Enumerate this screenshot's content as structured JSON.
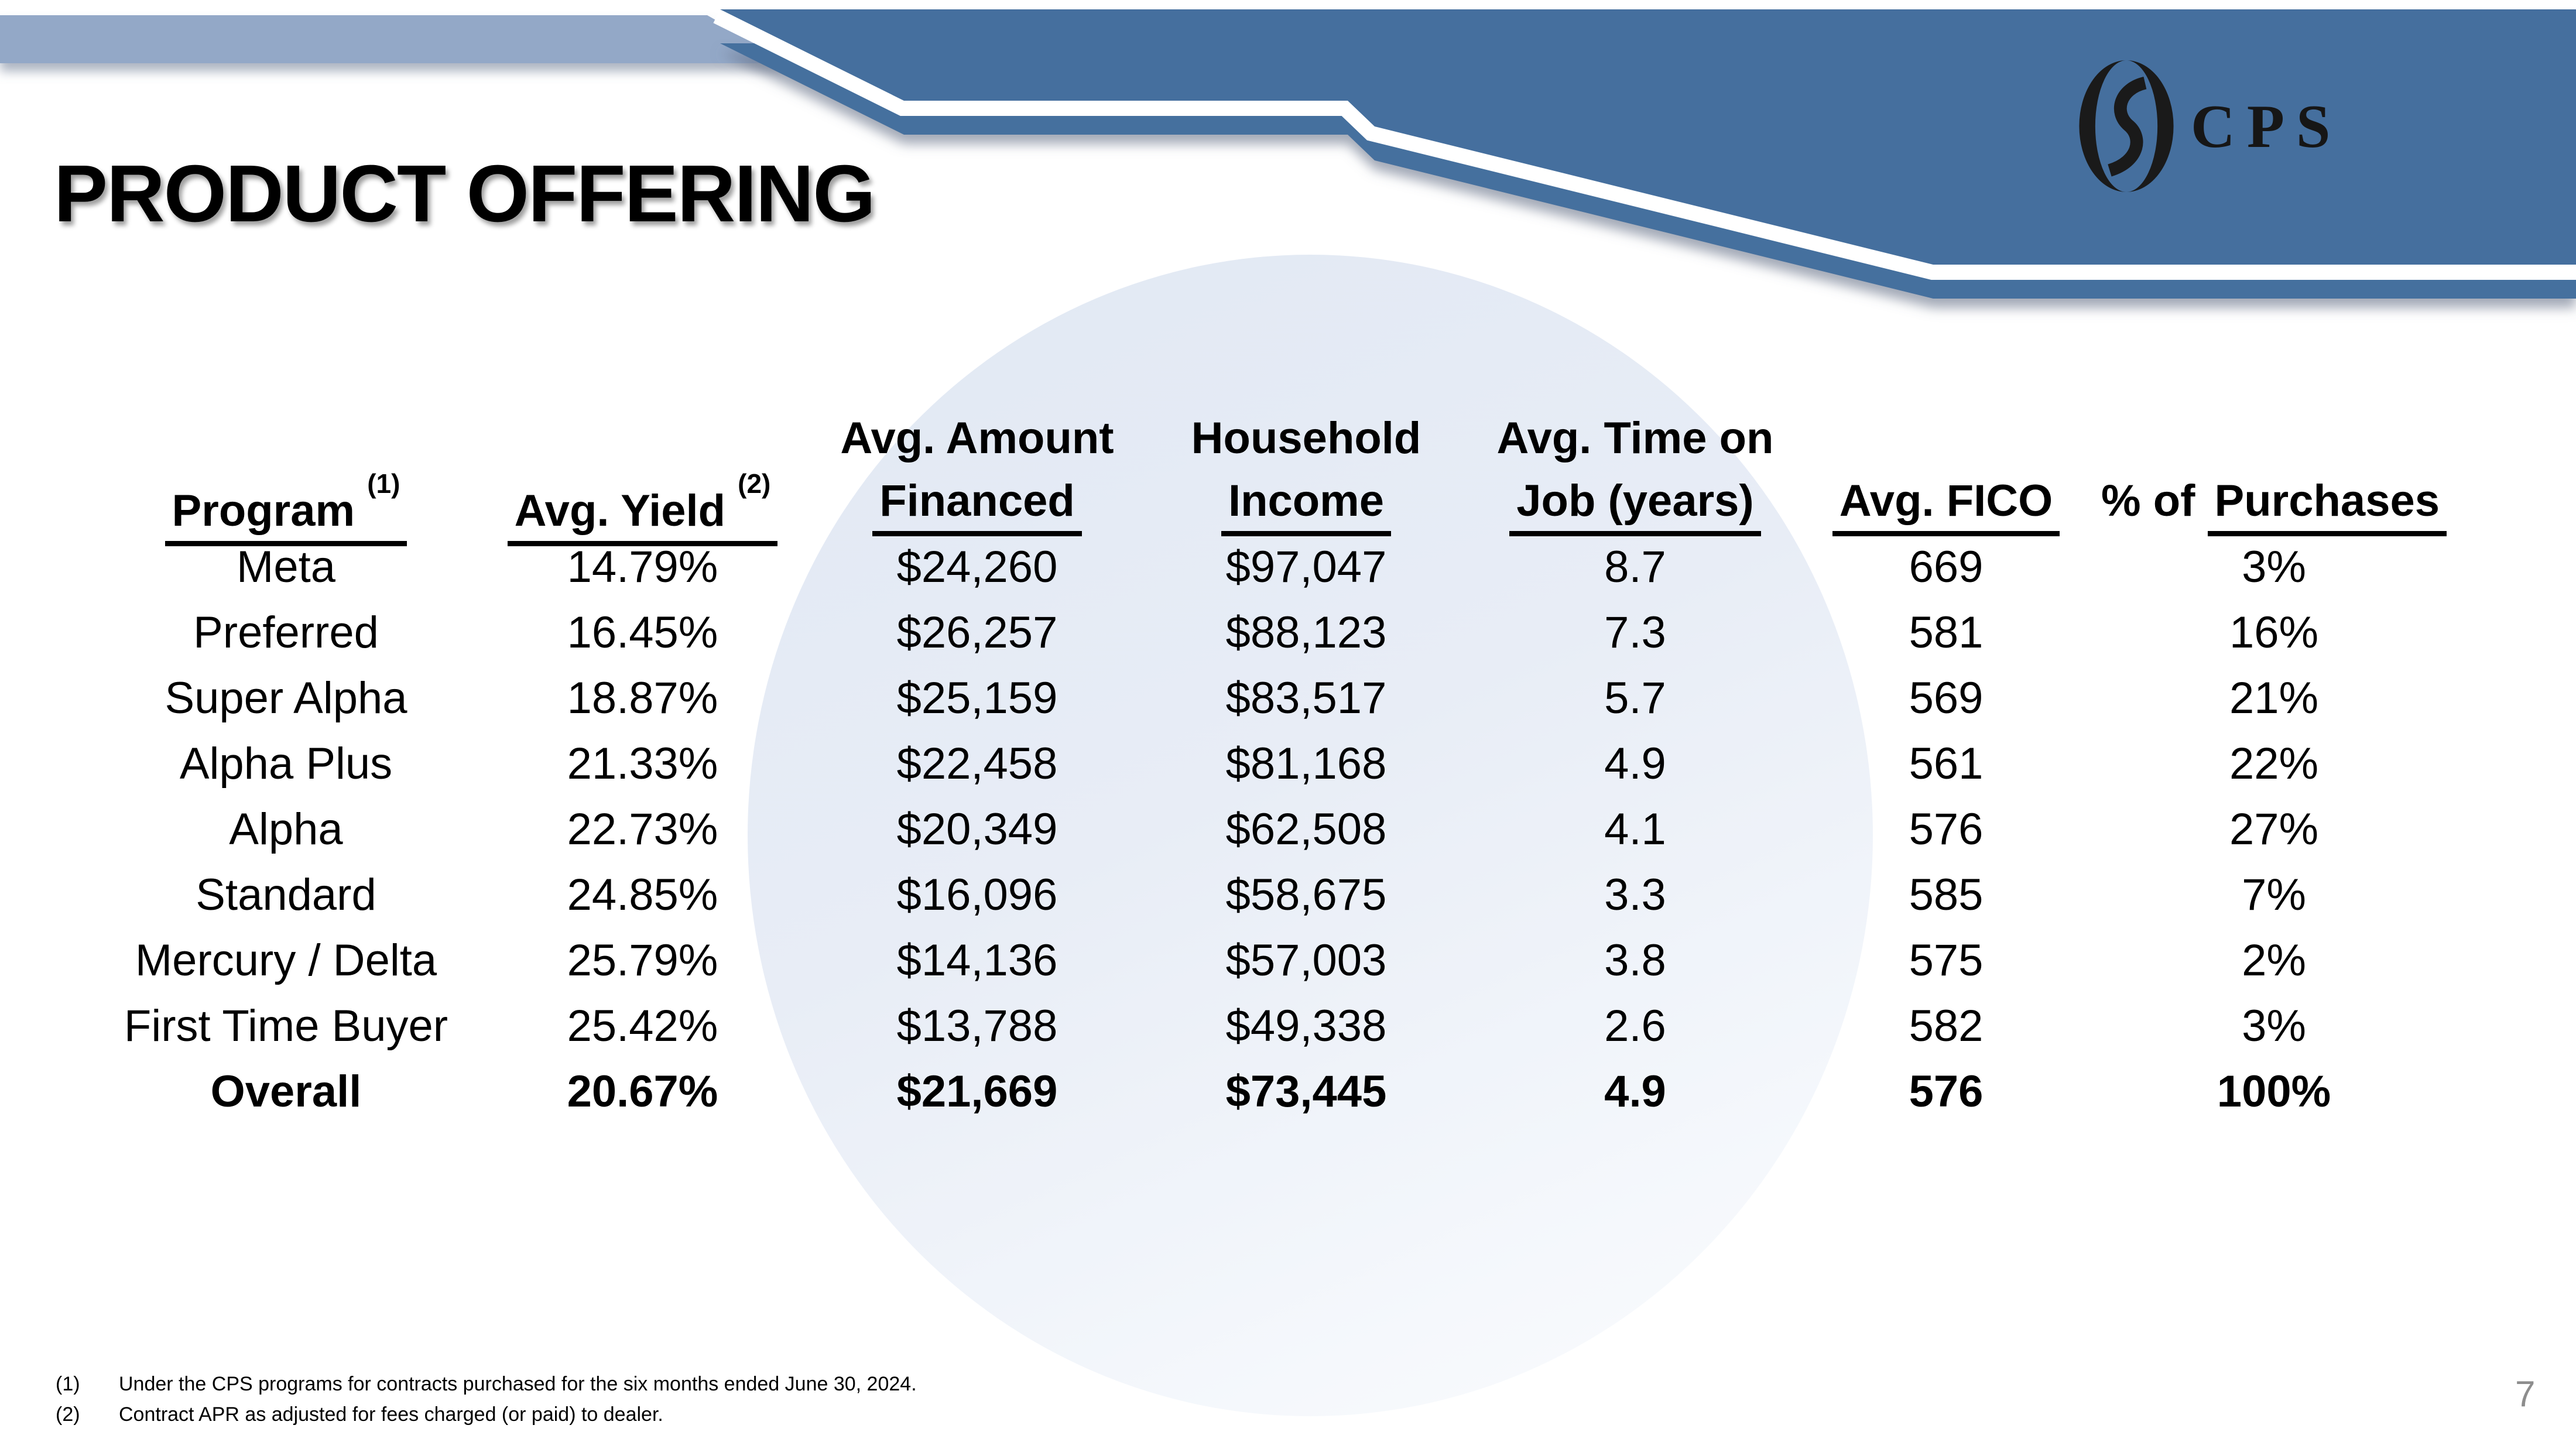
{
  "slide": {
    "title": "PRODUCT OFFERING",
    "page_number": "7"
  },
  "logo": {
    "text": "CPS"
  },
  "colors": {
    "banner_dark": "#456f9e",
    "banner_light": "#93a8c7",
    "stripe_white": "#ffffff",
    "logo_black": "#1a1a1a",
    "circle_tint": "#e2e9f4",
    "page_number_gray": "#8d8d8d"
  },
  "table": {
    "columns": [
      {
        "line1": "",
        "prefix": "",
        "label": "Program ",
        "sup": "(1)"
      },
      {
        "line1": "",
        "prefix": "",
        "label": "Avg. Yield ",
        "sup": "(2)"
      },
      {
        "line1": "Avg. Amount",
        "prefix": "",
        "label": "Financed",
        "sup": ""
      },
      {
        "line1": "Household",
        "prefix": "",
        "label": "Income",
        "sup": ""
      },
      {
        "line1": "Avg. Time on",
        "prefix": "",
        "label": "Job (years)",
        "sup": ""
      },
      {
        "line1": "",
        "prefix": "",
        "label": "Avg. FICO",
        "sup": ""
      },
      {
        "line1": "",
        "prefix": "% of ",
        "label": "Purchases",
        "sup": ""
      }
    ],
    "rows": [
      {
        "program": "Meta",
        "avg_yield": "14.79%",
        "avg_amount_financed": "$24,260",
        "household_income": "$97,047",
        "avg_time_on_job": "8.7",
        "avg_fico": "669",
        "pct_of_purchases": "3%",
        "emphasis": false
      },
      {
        "program": "Preferred",
        "avg_yield": "16.45%",
        "avg_amount_financed": "$26,257",
        "household_income": "$88,123",
        "avg_time_on_job": "7.3",
        "avg_fico": "581",
        "pct_of_purchases": "16%",
        "emphasis": false
      },
      {
        "program": "Super Alpha",
        "avg_yield": "18.87%",
        "avg_amount_financed": "$25,159",
        "household_income": "$83,517",
        "avg_time_on_job": "5.7",
        "avg_fico": "569",
        "pct_of_purchases": "21%",
        "emphasis": false
      },
      {
        "program": "Alpha Plus",
        "avg_yield": "21.33%",
        "avg_amount_financed": "$22,458",
        "household_income": "$81,168",
        "avg_time_on_job": "4.9",
        "avg_fico": "561",
        "pct_of_purchases": "22%",
        "emphasis": false
      },
      {
        "program": "Alpha",
        "avg_yield": "22.73%",
        "avg_amount_financed": "$20,349",
        "household_income": "$62,508",
        "avg_time_on_job": "4.1",
        "avg_fico": "576",
        "pct_of_purchases": "27%",
        "emphasis": false
      },
      {
        "program": "Standard",
        "avg_yield": "24.85%",
        "avg_amount_financed": "$16,096",
        "household_income": "$58,675",
        "avg_time_on_job": "3.3",
        "avg_fico": "585",
        "pct_of_purchases": "7%",
        "emphasis": false
      },
      {
        "program": "Mercury / Delta",
        "avg_yield": "25.79%",
        "avg_amount_financed": "$14,136",
        "household_income": "$57,003",
        "avg_time_on_job": "3.8",
        "avg_fico": "575",
        "pct_of_purchases": "2%",
        "emphasis": false
      },
      {
        "program": "First Time Buyer",
        "avg_yield": "25.42%",
        "avg_amount_financed": "$13,788",
        "household_income": "$49,338",
        "avg_time_on_job": "2.6",
        "avg_fico": "582",
        "pct_of_purchases": "3%",
        "emphasis": false
      },
      {
        "program": "Overall",
        "avg_yield": "20.67%",
        "avg_amount_financed": "$21,669",
        "household_income": "$73,445",
        "avg_time_on_job": "4.9",
        "avg_fico": "576",
        "pct_of_purchases": "100%",
        "emphasis": true
      }
    ]
  },
  "footnotes": [
    {
      "marker": "(1)",
      "text": "Under the CPS programs for contracts purchased for the six months ended June 30, 2024."
    },
    {
      "marker": "(2)",
      "text": "Contract APR as adjusted for fees charged (or paid) to dealer."
    }
  ]
}
